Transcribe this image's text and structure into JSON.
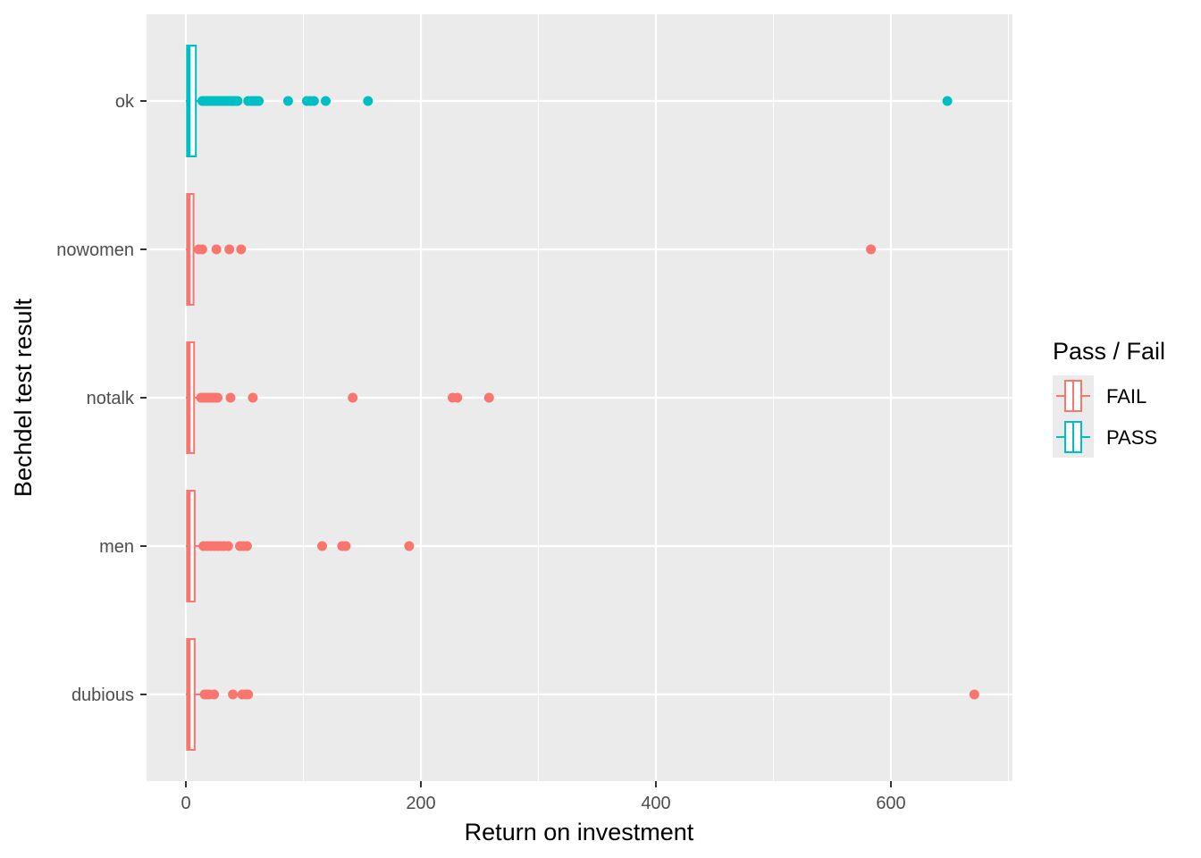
{
  "chart_data": {
    "type": "boxplot",
    "orientation": "horizontal",
    "xlabel": "Return on investment",
    "ylabel": "Bechdel test result",
    "xlim": [
      -33,
      700
    ],
    "x_ticks": [
      0,
      200,
      400,
      600
    ],
    "x_tick_labels": [
      "0",
      "200",
      "400",
      "600"
    ],
    "grid": true,
    "legend": {
      "title": "Pass / Fail",
      "placement": "right",
      "entries": [
        {
          "label": "FAIL",
          "color": "#F8766D"
        },
        {
          "label": "PASS",
          "color": "#00BFC4"
        }
      ]
    },
    "categories": [
      "dubious",
      "men",
      "notalk",
      "nowomen",
      "ok"
    ],
    "series": [
      {
        "category": "ok",
        "group": "PASS",
        "color": "#00BFC4",
        "box": {
          "q1": 1.0,
          "median": 2.5,
          "q3": 8.5,
          "whisker_low": 0,
          "whisker_high": 16
        },
        "outliers": [
          14,
          16,
          18,
          20,
          22,
          24,
          26,
          28,
          30,
          32,
          34,
          36,
          38,
          40,
          42,
          44,
          53,
          56,
          58,
          60,
          62,
          87,
          103,
          106,
          109,
          119,
          155,
          648
        ]
      },
      {
        "category": "nowomen",
        "group": "FAIL",
        "color": "#F8766D",
        "box": {
          "q1": 1.0,
          "median": 2.5,
          "q3": 6.5,
          "whisker_low": 0,
          "whisker_high": 10
        },
        "outliers": [
          11,
          14,
          26,
          37,
          47,
          583
        ]
      },
      {
        "category": "notalk",
        "group": "FAIL",
        "color": "#F8766D",
        "box": {
          "q1": 1.0,
          "median": 2.5,
          "q3": 7.0,
          "whisker_low": 0,
          "whisker_high": 12
        },
        "outliers": [
          13,
          15,
          17,
          19,
          21,
          23,
          25,
          27,
          38,
          57,
          142,
          227,
          231,
          258
        ]
      },
      {
        "category": "men",
        "group": "FAIL",
        "color": "#F8766D",
        "box": {
          "q1": 1.0,
          "median": 2.5,
          "q3": 7.5,
          "whisker_low": 0,
          "whisker_high": 13
        },
        "outliers": [
          15,
          18,
          21,
          24,
          27,
          30,
          33,
          36,
          46,
          49,
          52,
          116,
          133,
          136,
          190
        ]
      },
      {
        "category": "dubious",
        "group": "FAIL",
        "color": "#F8766D",
        "box": {
          "q1": 1.0,
          "median": 2.5,
          "q3": 7.5,
          "whisker_low": 0,
          "whisker_high": 13
        },
        "outliers": [
          16,
          18,
          20,
          24,
          40,
          48,
          51,
          53,
          671
        ]
      }
    ]
  }
}
